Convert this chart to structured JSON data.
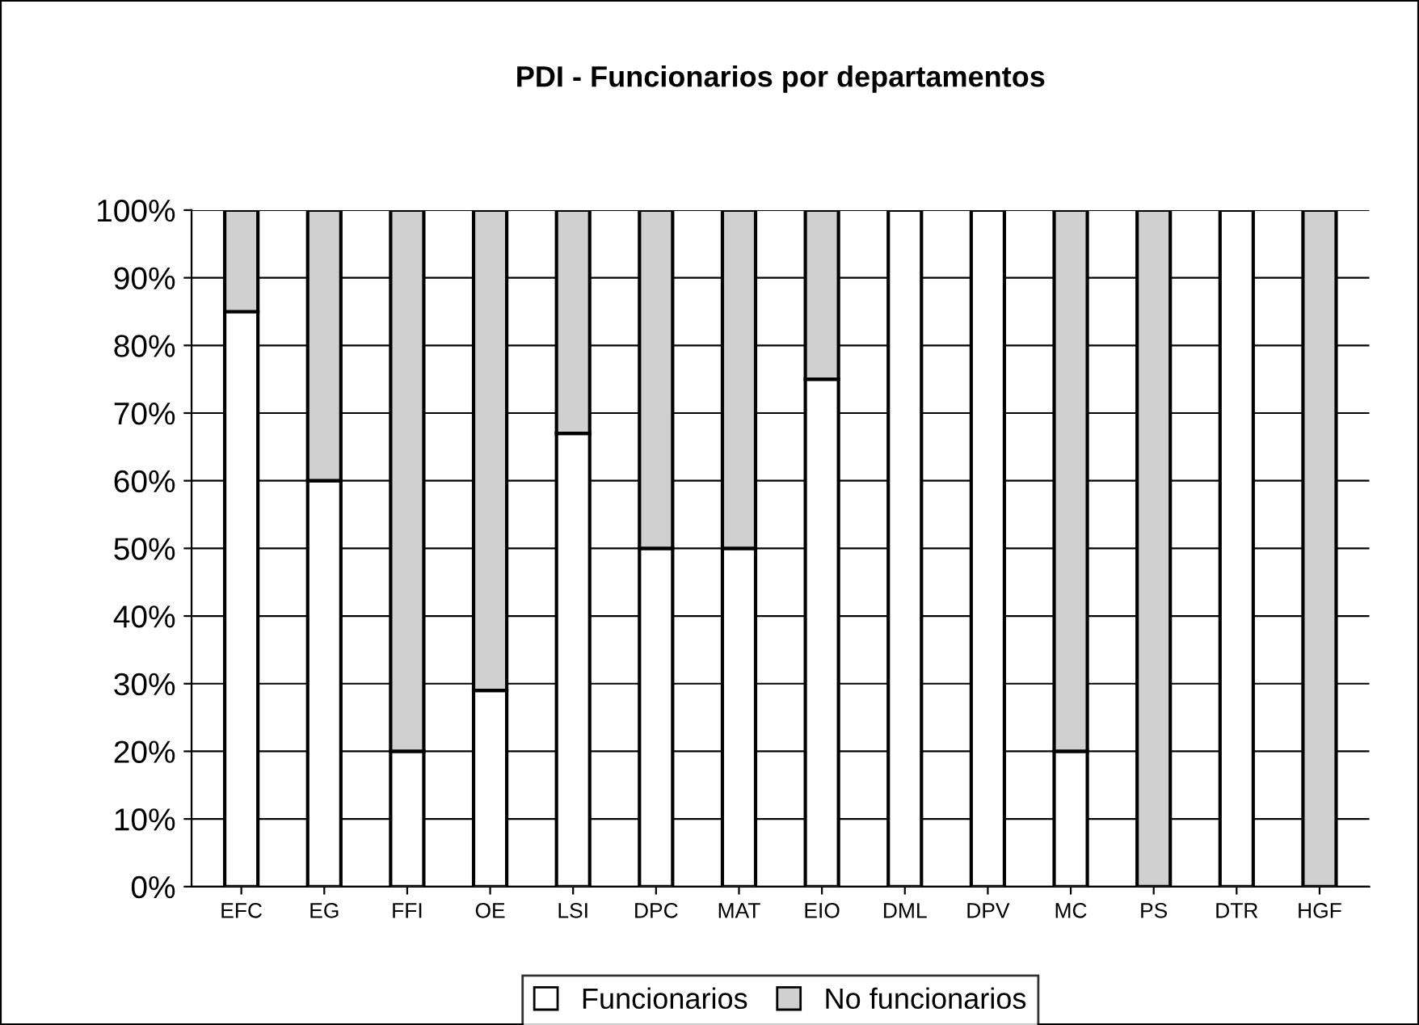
{
  "chart_data": {
    "type": "bar",
    "stacked": true,
    "title": "PDI - Funcionarios por departamentos",
    "categories": [
      "EFC",
      "EG",
      "FFI",
      "OE",
      "LSI",
      "DPC",
      "MAT",
      "EIO",
      "DML",
      "DPV",
      "MC",
      "PS",
      "DTR",
      "HGF"
    ],
    "series": [
      {
        "name": "Funcionarios",
        "color": "#ffffff",
        "values": [
          85,
          60,
          20,
          29,
          67,
          50,
          50,
          75,
          100,
          100,
          20,
          0,
          100,
          0
        ]
      },
      {
        "name": "No funcionarios",
        "color": "#d0d0d0",
        "values": [
          15,
          40,
          80,
          71,
          33,
          50,
          50,
          25,
          0,
          0,
          80,
          100,
          0,
          100
        ]
      }
    ],
    "ylim": [
      0,
      100
    ],
    "yticks": [
      {
        "value": 0,
        "label": "0%"
      },
      {
        "value": 10,
        "label": "10%"
      },
      {
        "value": 20,
        "label": "20%"
      },
      {
        "value": 30,
        "label": "30%"
      },
      {
        "value": 40,
        "label": "40%"
      },
      {
        "value": 50,
        "label": "50%"
      },
      {
        "value": 60,
        "label": "60%"
      },
      {
        "value": 70,
        "label": "70%"
      },
      {
        "value": 80,
        "label": "80%"
      },
      {
        "value": 90,
        "label": "90%"
      },
      {
        "value": 100,
        "label": "100%"
      }
    ],
    "grid": "y",
    "legend": "bottom"
  }
}
